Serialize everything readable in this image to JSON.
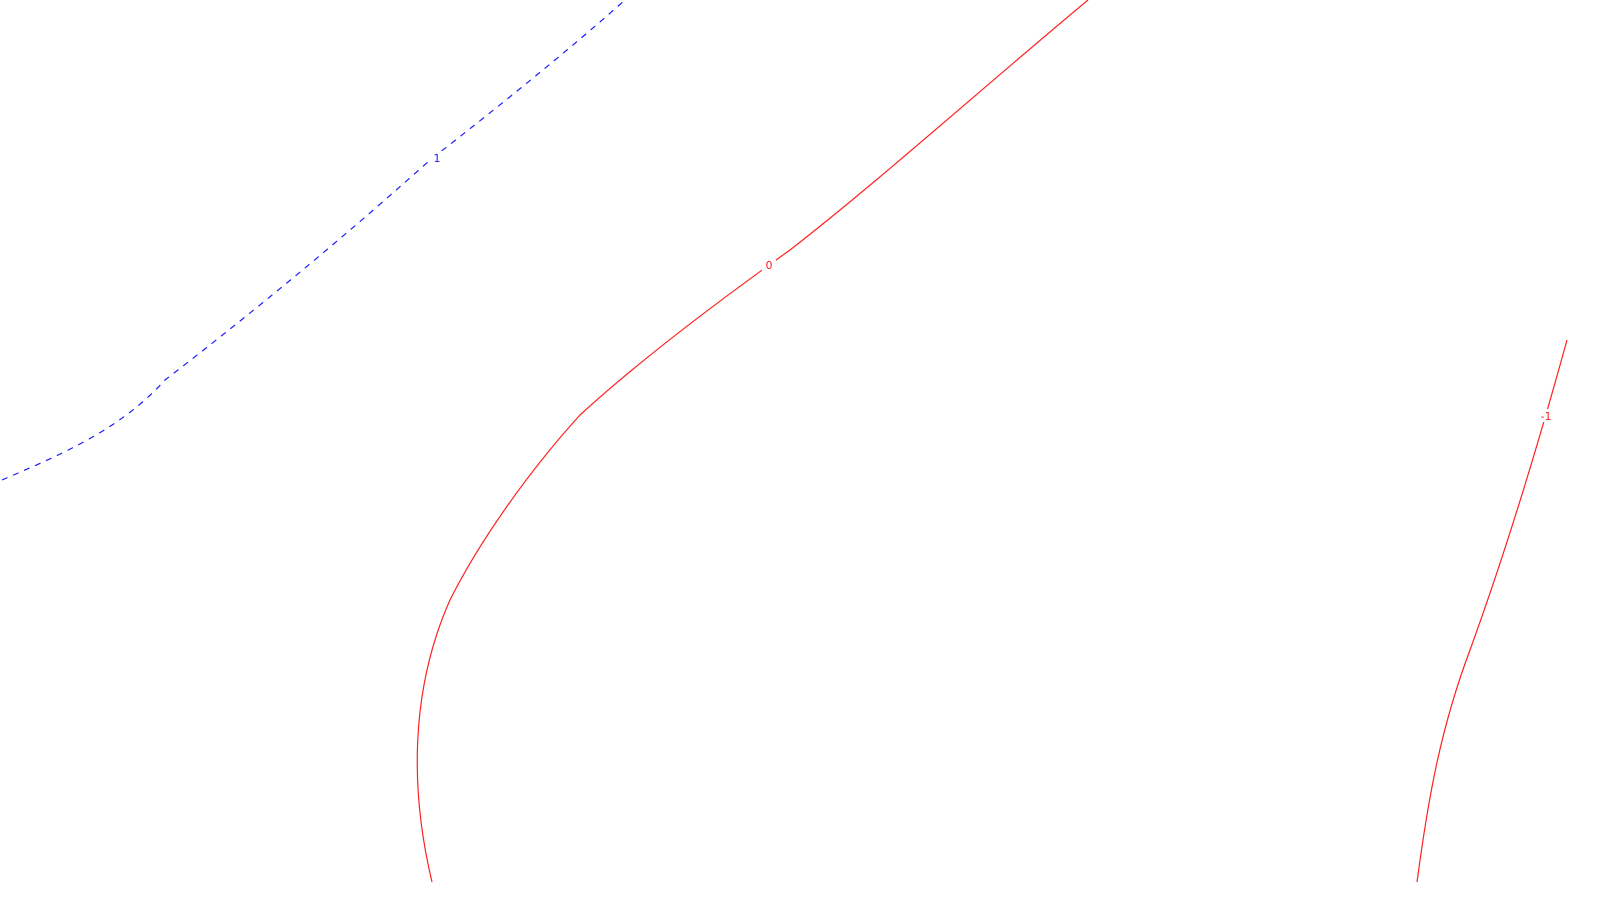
{
  "contours": [
    {
      "label": "1",
      "color": "#1a1aff",
      "style": "dashed"
    },
    {
      "label": "0",
      "color": "#ff2020",
      "style": "solid"
    },
    {
      "label": "-1",
      "color": "#ff2020",
      "style": "solid"
    }
  ]
}
